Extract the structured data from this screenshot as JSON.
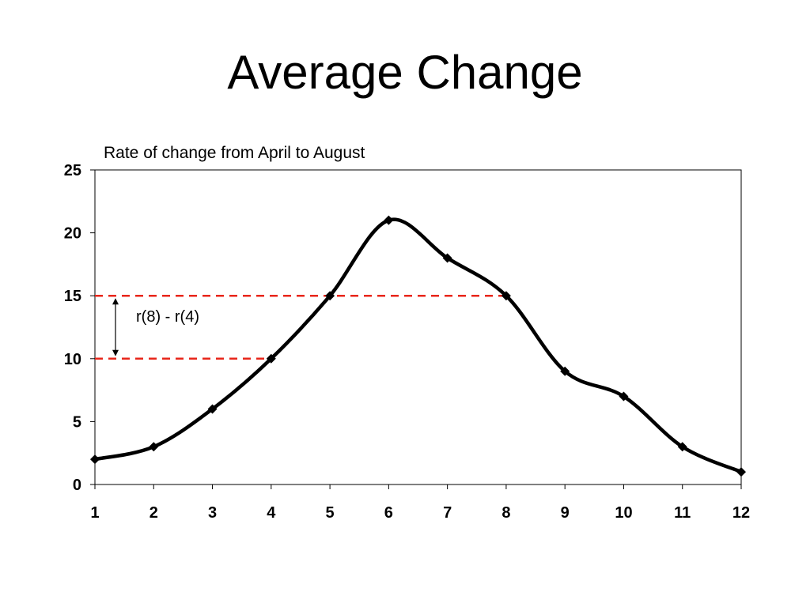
{
  "slide": {
    "title": "Average Change"
  },
  "chart_data": {
    "type": "line",
    "title": "Rate of change from April to August",
    "xlabel": "",
    "ylabel": "",
    "x": [
      1,
      2,
      3,
      4,
      5,
      6,
      7,
      8,
      9,
      10,
      11,
      12
    ],
    "series": [
      {
        "values": [
          2,
          3,
          6,
          10,
          15,
          21,
          18,
          15,
          9,
          7,
          3,
          1
        ]
      }
    ],
    "xlim": [
      1,
      12
    ],
    "ylim": [
      0,
      25
    ],
    "yticks": [
      0,
      5,
      10,
      15,
      20,
      25
    ],
    "xticks": [
      1,
      2,
      3,
      4,
      5,
      6,
      7,
      8,
      9,
      10,
      11,
      12
    ],
    "grid": false,
    "legend": "none",
    "smooth": true,
    "marker": "diamond",
    "colors": {
      "line": "#000000",
      "reference": "#e8261a"
    },
    "annotations": [
      {
        "text": "r(8) - r(4)",
        "from_y": 10,
        "to_y": 15,
        "reference_lines": [
          {
            "y": 15,
            "x_end": 8
          },
          {
            "y": 10,
            "x_end": 4
          }
        ]
      }
    ]
  }
}
